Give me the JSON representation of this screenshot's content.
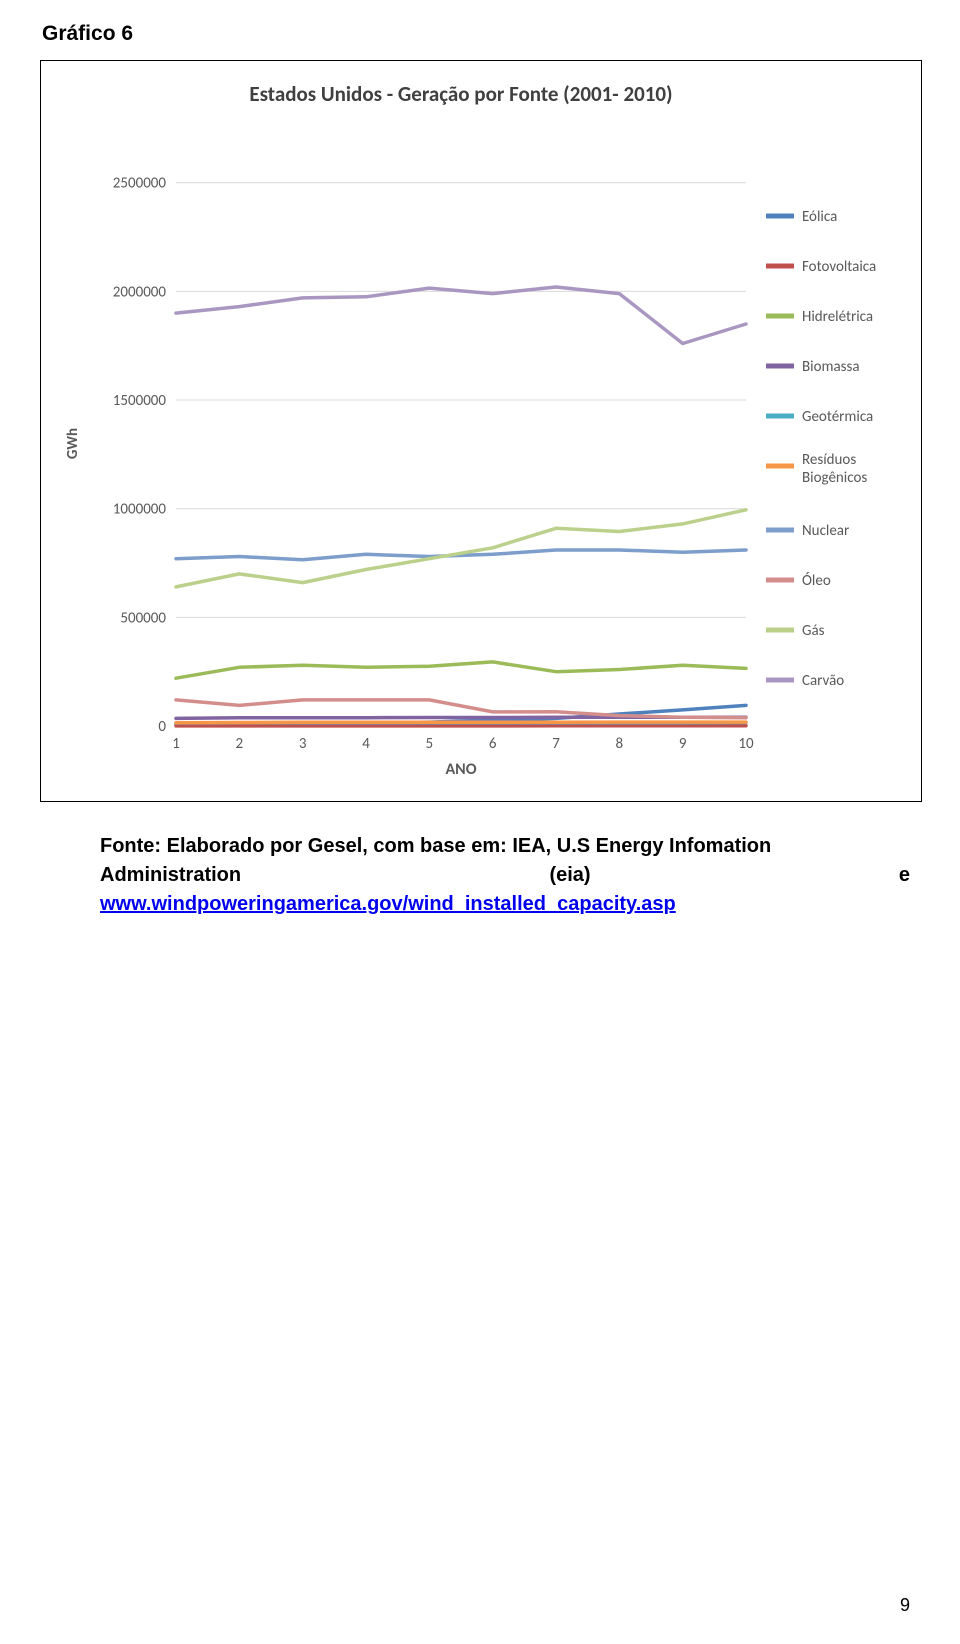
{
  "heading": "Gráfico 6",
  "chart": {
    "type": "line",
    "title": "Estados Unidos - Geração por Fonte (2001- 2010)",
    "title_fontsize": 21,
    "title_color": "#404040",
    "title_fontweight": "bold",
    "ylabel": "GWh",
    "ylabel_fontsize": 15,
    "ylabel_fontweight": "bold",
    "xlabel": "ANO",
    "xlabel_fontsize": 16,
    "xlabel_fontweight": "bold",
    "background_color": "#ffffff",
    "grid_color": "#d9d9d9",
    "axis_label_color": "#595959",
    "tick_label_color": "#595959",
    "tick_fontsize": 15,
    "ylim": [
      0,
      2600000
    ],
    "ytick_step": 500000,
    "yticks": [
      0,
      500000,
      1000000,
      1500000,
      2000000,
      2500000
    ],
    "xlim": [
      1,
      10
    ],
    "xticks": [
      1,
      2,
      3,
      4,
      5,
      6,
      7,
      8,
      9,
      10
    ],
    "line_width": 3.5,
    "legend_swatch_width": 28,
    "legend_swatch_height": 5,
    "legend_fontsize": 15,
    "legend_text_color": "#595959",
    "legend": [
      {
        "key": "eolica",
        "label": "Eólica",
        "color": "#4f81bd"
      },
      {
        "key": "fotovoltaica",
        "label": "Fotovoltaica",
        "color": "#c0504d"
      },
      {
        "key": "hidreletrica",
        "label": "Hidrelétrica",
        "color": "#9bbb59"
      },
      {
        "key": "biomassa",
        "label": "Biomassa",
        "color": "#8064a2"
      },
      {
        "key": "geotermica",
        "label": "Geotérmica",
        "color": "#4bacc6"
      },
      {
        "key": "residuos",
        "label": "Resíduos Biogênicos",
        "color": "#f79646"
      },
      {
        "key": "nuclear",
        "label": "Nuclear",
        "color": "#7d9ecb"
      },
      {
        "key": "oleo",
        "label": "Óleo",
        "color": "#d38e8c"
      },
      {
        "key": "gas",
        "label": "Gás",
        "color": "#bbd18b"
      },
      {
        "key": "carvao",
        "label": "Carvão",
        "color": "#a997c1"
      }
    ],
    "series": {
      "eolica": [
        6000,
        10000,
        12000,
        14000,
        18000,
        27000,
        35000,
        55000,
        74000,
        95000
      ],
      "fotovoltaica": [
        500,
        550,
        550,
        600,
        600,
        600,
        700,
        900,
        900,
        1300
      ],
      "hidreletrica": [
        220000,
        270000,
        280000,
        270000,
        275000,
        295000,
        250000,
        260000,
        280000,
        265000
      ],
      "biomassa": [
        35000,
        38000,
        38000,
        38000,
        39000,
        39000,
        40000,
        40000,
        40000,
        40000
      ],
      "geotermica": [
        14000,
        15000,
        15000,
        15000,
        15000,
        15000,
        15000,
        15000,
        15000,
        16000
      ],
      "residuos": [
        15000,
        16000,
        17000,
        17000,
        17000,
        17000,
        17000,
        18000,
        18000,
        18000
      ],
      "nuclear": [
        770000,
        780000,
        765000,
        790000,
        780000,
        790000,
        810000,
        810000,
        800000,
        810000
      ],
      "oleo": [
        120000,
        95000,
        120000,
        120000,
        120000,
        65000,
        66000,
        48000,
        40000,
        38000
      ],
      "gas": [
        640000,
        700000,
        660000,
        720000,
        770000,
        820000,
        910000,
        895000,
        930000,
        995000
      ],
      "carvao": [
        1900000,
        1930000,
        1970000,
        1975000,
        2015000,
        1990000,
        2020000,
        1990000,
        1760000,
        1850000
      ]
    }
  },
  "source": {
    "line1_prefix": "Fonte: Elaborado por Gesel, com base em: IEA, U.S Energy Infomation",
    "line2_left": "Administration",
    "line2_mid": "(eia)",
    "line2_right": "e",
    "link_text": "www.windpoweringamerica.gov/wind_installed_capacity.asp",
    "link_href": "http://www.windpoweringamerica.gov/wind_installed_capacity.asp"
  },
  "page_number": "9"
}
